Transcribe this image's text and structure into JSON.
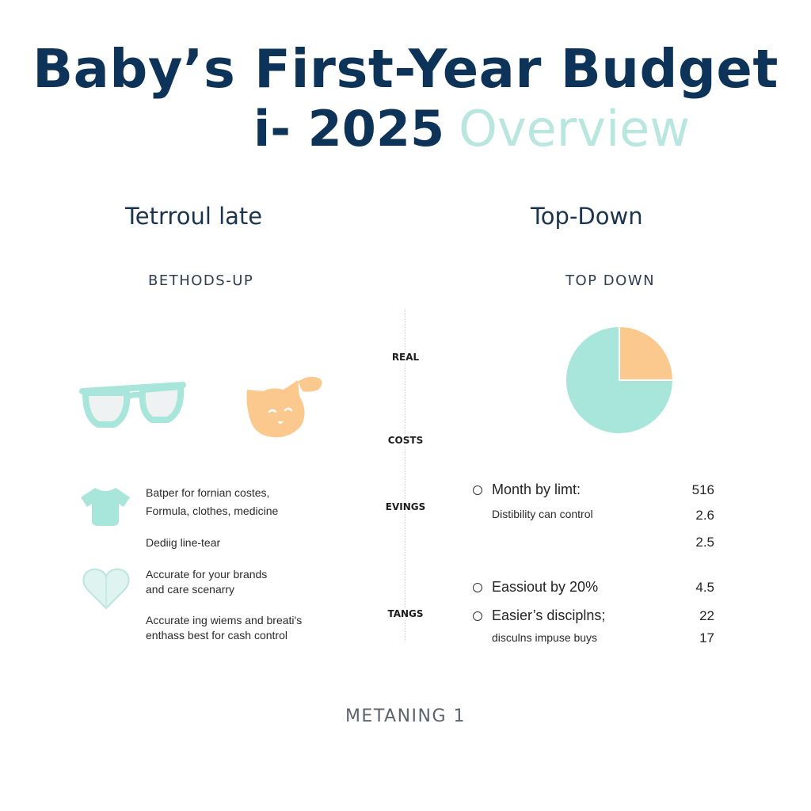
{
  "title": {
    "line1": "Baby’s First-Year Budget",
    "line2_dark": "i- 2025",
    "line2_light": "Overview"
  },
  "left": {
    "heading": "Tetrroul late",
    "subheading": "BETHODS-UP",
    "icons": [
      "glasses-icon",
      "cat-face-icon",
      "onesie-icon",
      "heart-icon"
    ],
    "lines": [
      "Batper for fornian costes,",
      "Formula, clothes, medicine",
      "Dediig line-tear",
      "Accurate for your brands",
      "and care scenarry",
      "Accurate ing wiems and breati's",
      "enthass best for cash control"
    ]
  },
  "middle": {
    "labels": [
      "REAL",
      "COSTS",
      "EVINGS",
      "TANGS"
    ]
  },
  "right": {
    "heading": "Top-Down",
    "subheading": "TOP DOWN",
    "rows": [
      {
        "main": "Month by limt:",
        "value": "516"
      },
      {
        "sub": "Distibility can control",
        "value": "2.6"
      },
      {
        "value": "2.5"
      },
      {
        "main": "Eassiout by 20%",
        "value": "4.5"
      },
      {
        "main": "Easier’s disciplns;",
        "value": "22"
      },
      {
        "sub": "disculns impuse buys",
        "value": "17"
      }
    ]
  },
  "chart_data": {
    "type": "pie",
    "title": "",
    "labels": [
      "",
      ""
    ],
    "values": [
      75,
      25
    ],
    "colors": [
      "#a8e5da",
      "#fbc98d"
    ]
  },
  "footer": "METANING 1",
  "colors": {
    "navy": "#0e3358",
    "mint": "#a8e5da",
    "peach": "#fbc98d"
  }
}
